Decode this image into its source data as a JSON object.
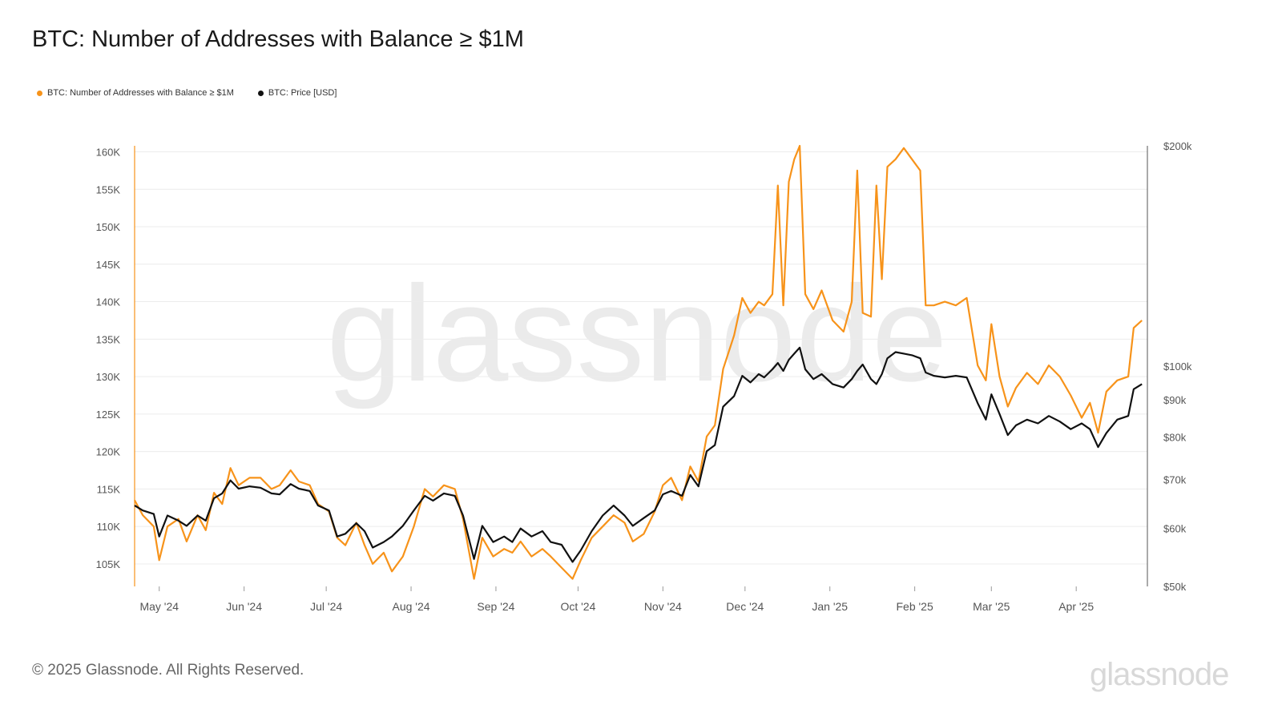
{
  "title": "BTC: Number of Addresses with Balance ≥ $1M",
  "legend": {
    "addresses_label": "BTC: Number of Addresses with Balance ≥ $1M",
    "price_label": "BTC: Price [USD]"
  },
  "footer": {
    "copyright": "© 2025 Glassnode. All Rights Reserved.",
    "brand": "glassnode"
  },
  "watermark": "glassnode",
  "colors": {
    "addresses": "#f7931a",
    "price": "#111111",
    "grid": "#ececec",
    "axis_text": "#555555"
  },
  "chart_data": {
    "type": "line",
    "title": "BTC: Number of Addresses with Balance ≥ $1M",
    "x_range": [
      "2024-04-22",
      "2025-04-27"
    ],
    "x_ticks": [
      {
        "label": "May '24",
        "date": "2024-05-01"
      },
      {
        "label": "Jun '24",
        "date": "2024-06-01"
      },
      {
        "label": "Jul '24",
        "date": "2024-07-01"
      },
      {
        "label": "Aug '24",
        "date": "2024-08-01"
      },
      {
        "label": "Sep '24",
        "date": "2024-09-01"
      },
      {
        "label": "Oct '24",
        "date": "2024-10-01"
      },
      {
        "label": "Nov '24",
        "date": "2024-11-01"
      },
      {
        "label": "Dec '24",
        "date": "2024-12-01"
      },
      {
        "label": "Jan '25",
        "date": "2025-01-01"
      },
      {
        "label": "Feb '25",
        "date": "2025-02-01"
      },
      {
        "label": "Mar '25",
        "date": "2025-03-01"
      },
      {
        "label": "Apr '25",
        "date": "2025-04-01"
      }
    ],
    "y_left": {
      "range": [
        102000,
        160800
      ],
      "ticks": [
        105000,
        110000,
        115000,
        120000,
        125000,
        130000,
        135000,
        140000,
        145000,
        150000,
        155000,
        160000
      ],
      "tick_labels": [
        "105K",
        "110K",
        "115K",
        "120K",
        "125K",
        "130K",
        "135K",
        "140K",
        "145K",
        "150K",
        "155K",
        "160K"
      ]
    },
    "y_right": {
      "scale": "log",
      "range": [
        50000,
        200000
      ],
      "ticks": [
        50000,
        60000,
        70000,
        80000,
        90000,
        100000,
        200000
      ],
      "tick_labels": [
        "$50k",
        "$60k",
        "$70k",
        "$80k",
        "$90k",
        "$100k",
        "$200k"
      ]
    },
    "series": [
      {
        "name": "BTC: Number of Addresses with Balance ≥ $1M",
        "axis": "left",
        "points": [
          [
            "2024-04-22",
            113500
          ],
          [
            "2024-04-25",
            111500
          ],
          [
            "2024-04-29",
            110000
          ],
          [
            "2024-05-01",
            105500
          ],
          [
            "2024-05-04",
            110000
          ],
          [
            "2024-05-08",
            111000
          ],
          [
            "2024-05-11",
            108000
          ],
          [
            "2024-05-15",
            111500
          ],
          [
            "2024-05-18",
            109500
          ],
          [
            "2024-05-21",
            114500
          ],
          [
            "2024-05-24",
            113000
          ],
          [
            "2024-05-27",
            117800
          ],
          [
            "2024-05-30",
            115500
          ],
          [
            "2024-06-03",
            116500
          ],
          [
            "2024-06-07",
            116500
          ],
          [
            "2024-06-11",
            115000
          ],
          [
            "2024-06-14",
            115500
          ],
          [
            "2024-06-18",
            117500
          ],
          [
            "2024-06-21",
            116000
          ],
          [
            "2024-06-25",
            115500
          ],
          [
            "2024-06-28",
            113000
          ],
          [
            "2024-07-02",
            112000
          ],
          [
            "2024-07-05",
            108500
          ],
          [
            "2024-07-08",
            107500
          ],
          [
            "2024-07-12",
            110500
          ],
          [
            "2024-07-15",
            107500
          ],
          [
            "2024-07-18",
            105000
          ],
          [
            "2024-07-22",
            106500
          ],
          [
            "2024-07-25",
            104000
          ],
          [
            "2024-07-29",
            106000
          ],
          [
            "2024-08-02",
            110000
          ],
          [
            "2024-08-06",
            115000
          ],
          [
            "2024-08-09",
            114000
          ],
          [
            "2024-08-13",
            115500
          ],
          [
            "2024-08-17",
            115000
          ],
          [
            "2024-08-20",
            111000
          ],
          [
            "2024-08-24",
            103000
          ],
          [
            "2024-08-27",
            108500
          ],
          [
            "2024-08-31",
            106000
          ],
          [
            "2024-09-04",
            107000
          ],
          [
            "2024-09-07",
            106500
          ],
          [
            "2024-09-10",
            108000
          ],
          [
            "2024-09-14",
            106000
          ],
          [
            "2024-09-18",
            107000
          ],
          [
            "2024-09-21",
            106000
          ],
          [
            "2024-09-25",
            104500
          ],
          [
            "2024-09-29",
            103000
          ],
          [
            "2024-10-02",
            105500
          ],
          [
            "2024-10-06",
            108500
          ],
          [
            "2024-10-10",
            110000
          ],
          [
            "2024-10-14",
            111500
          ],
          [
            "2024-10-18",
            110500
          ],
          [
            "2024-10-21",
            108000
          ],
          [
            "2024-10-25",
            109000
          ],
          [
            "2024-10-29",
            112000
          ],
          [
            "2024-11-01",
            115500
          ],
          [
            "2024-11-04",
            116500
          ],
          [
            "2024-11-08",
            113500
          ],
          [
            "2024-11-11",
            118000
          ],
          [
            "2024-11-14",
            116000
          ],
          [
            "2024-11-17",
            122000
          ],
          [
            "2024-11-20",
            123500
          ],
          [
            "2024-11-23",
            131000
          ],
          [
            "2024-11-27",
            135500
          ],
          [
            "2024-11-30",
            140500
          ],
          [
            "2024-12-03",
            138500
          ],
          [
            "2024-12-06",
            140000
          ],
          [
            "2024-12-08",
            139500
          ],
          [
            "2024-12-11",
            141000
          ],
          [
            "2024-12-13",
            155500
          ],
          [
            "2024-12-15",
            139500
          ],
          [
            "2024-12-17",
            156000
          ],
          [
            "2024-12-19",
            159000
          ],
          [
            "2024-12-21",
            160800
          ],
          [
            "2024-12-23",
            141000
          ],
          [
            "2024-12-26",
            139000
          ],
          [
            "2024-12-29",
            141500
          ],
          [
            "2025-01-02",
            137500
          ],
          [
            "2025-01-06",
            136000
          ],
          [
            "2025-01-09",
            140000
          ],
          [
            "2025-01-11",
            157500
          ],
          [
            "2025-01-13",
            138500
          ],
          [
            "2025-01-16",
            138000
          ],
          [
            "2025-01-18",
            155500
          ],
          [
            "2025-01-20",
            143000
          ],
          [
            "2025-01-22",
            158000
          ],
          [
            "2025-01-25",
            159000
          ],
          [
            "2025-01-28",
            160500
          ],
          [
            "2025-01-31",
            159000
          ],
          [
            "2025-02-03",
            157500
          ],
          [
            "2025-02-05",
            139500
          ],
          [
            "2025-02-08",
            139500
          ],
          [
            "2025-02-12",
            140000
          ],
          [
            "2025-02-16",
            139500
          ],
          [
            "2025-02-20",
            140500
          ],
          [
            "2025-02-24",
            131500
          ],
          [
            "2025-02-27",
            129500
          ],
          [
            "2025-03-01",
            137000
          ],
          [
            "2025-03-04",
            130000
          ],
          [
            "2025-03-07",
            126000
          ],
          [
            "2025-03-10",
            128500
          ],
          [
            "2025-03-14",
            130500
          ],
          [
            "2025-03-18",
            129000
          ],
          [
            "2025-03-22",
            131500
          ],
          [
            "2025-03-26",
            130000
          ],
          [
            "2025-03-30",
            127500
          ],
          [
            "2025-04-03",
            124500
          ],
          [
            "2025-04-06",
            126500
          ],
          [
            "2025-04-09",
            122500
          ],
          [
            "2025-04-12",
            128000
          ],
          [
            "2025-04-16",
            129500
          ],
          [
            "2025-04-20",
            130000
          ],
          [
            "2025-04-22",
            136500
          ],
          [
            "2025-04-25",
            137500
          ]
        ]
      },
      {
        "name": "BTC: Price [USD]",
        "axis": "right",
        "points": [
          [
            "2024-04-22",
            64500
          ],
          [
            "2024-04-25",
            63500
          ],
          [
            "2024-04-29",
            62800
          ],
          [
            "2024-05-01",
            58500
          ],
          [
            "2024-05-04",
            62500
          ],
          [
            "2024-05-08",
            61500
          ],
          [
            "2024-05-11",
            60500
          ],
          [
            "2024-05-15",
            62500
          ],
          [
            "2024-05-18",
            61500
          ],
          [
            "2024-05-21",
            66000
          ],
          [
            "2024-05-24",
            67000
          ],
          [
            "2024-05-27",
            69800
          ],
          [
            "2024-05-30",
            68000
          ],
          [
            "2024-06-03",
            68500
          ],
          [
            "2024-06-07",
            68200
          ],
          [
            "2024-06-11",
            67000
          ],
          [
            "2024-06-14",
            66800
          ],
          [
            "2024-06-18",
            69000
          ],
          [
            "2024-06-21",
            68000
          ],
          [
            "2024-06-25",
            67500
          ],
          [
            "2024-06-28",
            64500
          ],
          [
            "2024-07-02",
            63500
          ],
          [
            "2024-07-05",
            58500
          ],
          [
            "2024-07-08",
            59000
          ],
          [
            "2024-07-12",
            61000
          ],
          [
            "2024-07-15",
            59500
          ],
          [
            "2024-07-18",
            56500
          ],
          [
            "2024-07-22",
            57500
          ],
          [
            "2024-07-25",
            58500
          ],
          [
            "2024-07-29",
            60500
          ],
          [
            "2024-08-02",
            63500
          ],
          [
            "2024-08-06",
            66500
          ],
          [
            "2024-08-09",
            65500
          ],
          [
            "2024-08-13",
            67000
          ],
          [
            "2024-08-17",
            66500
          ],
          [
            "2024-08-20",
            62500
          ],
          [
            "2024-08-24",
            54500
          ],
          [
            "2024-08-27",
            60500
          ],
          [
            "2024-08-31",
            57500
          ],
          [
            "2024-09-04",
            58500
          ],
          [
            "2024-09-07",
            57500
          ],
          [
            "2024-09-10",
            60000
          ],
          [
            "2024-09-14",
            58500
          ],
          [
            "2024-09-18",
            59500
          ],
          [
            "2024-09-21",
            57500
          ],
          [
            "2024-09-25",
            57000
          ],
          [
            "2024-09-29",
            54000
          ],
          [
            "2024-10-02",
            56000
          ],
          [
            "2024-10-06",
            59500
          ],
          [
            "2024-10-10",
            62500
          ],
          [
            "2024-10-14",
            64500
          ],
          [
            "2024-10-18",
            62500
          ],
          [
            "2024-10-21",
            60500
          ],
          [
            "2024-10-25",
            62000
          ],
          [
            "2024-10-29",
            63500
          ],
          [
            "2024-11-01",
            66800
          ],
          [
            "2024-11-04",
            67500
          ],
          [
            "2024-11-08",
            66500
          ],
          [
            "2024-11-11",
            71000
          ],
          [
            "2024-11-14",
            68500
          ],
          [
            "2024-11-17",
            76500
          ],
          [
            "2024-11-20",
            78000
          ],
          [
            "2024-11-23",
            88000
          ],
          [
            "2024-11-27",
            91000
          ],
          [
            "2024-11-30",
            97000
          ],
          [
            "2024-12-03",
            95000
          ],
          [
            "2024-12-06",
            97500
          ],
          [
            "2024-12-08",
            96500
          ],
          [
            "2024-12-11",
            99000
          ],
          [
            "2024-12-13",
            101000
          ],
          [
            "2024-12-15",
            98500
          ],
          [
            "2024-12-17",
            102000
          ],
          [
            "2024-12-19",
            104000
          ],
          [
            "2024-12-21",
            106000
          ],
          [
            "2024-12-23",
            99000
          ],
          [
            "2024-12-26",
            96000
          ],
          [
            "2024-12-29",
            97500
          ],
          [
            "2025-01-02",
            94500
          ],
          [
            "2025-01-06",
            93500
          ],
          [
            "2025-01-09",
            96000
          ],
          [
            "2025-01-11",
            98500
          ],
          [
            "2025-01-13",
            100500
          ],
          [
            "2025-01-16",
            96000
          ],
          [
            "2025-01-18",
            94500
          ],
          [
            "2025-01-20",
            97500
          ],
          [
            "2025-01-22",
            102500
          ],
          [
            "2025-01-25",
            104500
          ],
          [
            "2025-01-28",
            104000
          ],
          [
            "2025-01-31",
            103500
          ],
          [
            "2025-02-03",
            102500
          ],
          [
            "2025-02-05",
            98000
          ],
          [
            "2025-02-08",
            97000
          ],
          [
            "2025-02-12",
            96500
          ],
          [
            "2025-02-16",
            97000
          ],
          [
            "2025-02-20",
            96500
          ],
          [
            "2025-02-24",
            89000
          ],
          [
            "2025-02-27",
            84500
          ],
          [
            "2025-03-01",
            91500
          ],
          [
            "2025-03-04",
            86000
          ],
          [
            "2025-03-07",
            80500
          ],
          [
            "2025-03-10",
            83000
          ],
          [
            "2025-03-14",
            84500
          ],
          [
            "2025-03-18",
            83500
          ],
          [
            "2025-03-22",
            85500
          ],
          [
            "2025-03-26",
            84000
          ],
          [
            "2025-03-30",
            82000
          ],
          [
            "2025-04-03",
            83500
          ],
          [
            "2025-04-06",
            82000
          ],
          [
            "2025-04-09",
            77500
          ],
          [
            "2025-04-12",
            81000
          ],
          [
            "2025-04-16",
            84500
          ],
          [
            "2025-04-20",
            85500
          ],
          [
            "2025-04-22",
            93000
          ],
          [
            "2025-04-25",
            94500
          ]
        ]
      }
    ]
  }
}
